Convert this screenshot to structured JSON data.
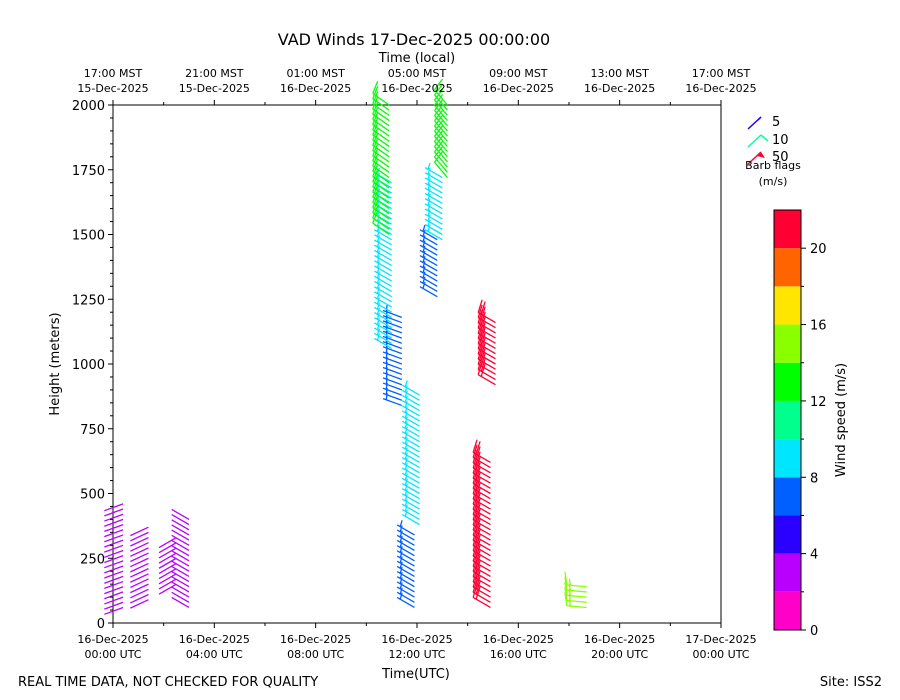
{
  "page": {
    "title": "VAD Winds 17-Dec-2025 00:00:00",
    "footer_left": "REAL TIME DATA, NOT CHECKED FOR QUALITY",
    "footer_right": "Site: ISS2"
  },
  "chart_data": {
    "type": "wind-barb",
    "title": "VAD Winds 17-Dec-2025 00:00:00",
    "xlabel": "Time(UTC)",
    "xlabel_top": "Time (local)",
    "ylabel": "Height (meters)",
    "xlim_hours": [
      0,
      24
    ],
    "ylim": [
      0,
      2000
    ],
    "x_ticks_hours": [
      0,
      4,
      8,
      12,
      16,
      20,
      24
    ],
    "x_tick_labels_utc": [
      [
        "16-Dec-2025",
        "00:00 UTC"
      ],
      [
        "16-Dec-2025",
        "04:00 UTC"
      ],
      [
        "16-Dec-2025",
        "08:00 UTC"
      ],
      [
        "16-Dec-2025",
        "12:00 UTC"
      ],
      [
        "16-Dec-2025",
        "16:00 UTC"
      ],
      [
        "16-Dec-2025",
        "20:00 UTC"
      ],
      [
        "17-Dec-2025",
        "00:00 UTC"
      ]
    ],
    "x_tick_labels_local": [
      [
        "17:00 MST",
        "15-Dec-2025"
      ],
      [
        "21:00 MST",
        "15-Dec-2025"
      ],
      [
        "01:00 MST",
        "16-Dec-2025"
      ],
      [
        "05:00 MST",
        "16-Dec-2025"
      ],
      [
        "09:00 MST",
        "16-Dec-2025"
      ],
      [
        "13:00 MST",
        "16-Dec-2025"
      ],
      [
        "17:00 MST",
        "16-Dec-2025"
      ]
    ],
    "y_ticks": [
      0,
      250,
      500,
      750,
      1000,
      1250,
      1500,
      1750,
      2000
    ],
    "barb_legend": {
      "title": "Barb flags",
      "units": "(m/s)",
      "entries": [
        "5",
        "10",
        "50"
      ],
      "entry_colors": [
        "#2a00ff",
        "#00ffa0",
        "#ff0033"
      ]
    },
    "colorbar": {
      "label": "Wind speed (m/s)",
      "min": 0,
      "max": 22,
      "ticks": [
        0,
        4,
        8,
        12,
        16,
        20
      ],
      "tick_labels": [
        "0",
        "4",
        "8",
        "12",
        "16",
        "20"
      ],
      "colors": [
        "#ff00c8",
        "#b900ff",
        "#2a00ff",
        "#005fff",
        "#00e6ff",
        "#00ff8c",
        "#00ff00",
        "#8aff00",
        "#ffe600",
        "#ff6400",
        "#ff0033"
      ]
    },
    "barb_groups": [
      {
        "name": "night-east-1",
        "hour": 0.4,
        "h_from": 60,
        "h_to": 460,
        "step": 20,
        "speed": 3.5,
        "dir": 250
      },
      {
        "name": "night-east-2",
        "hour": 1.4,
        "h_from": 90,
        "h_to": 380,
        "step": 20,
        "speed": 3.5,
        "dir": 245
      },
      {
        "name": "night-east-3",
        "hour": 2.5,
        "h_from": 150,
        "h_to": 340,
        "step": 20,
        "speed": 3.5,
        "dir": 240
      },
      {
        "name": "night-east-4",
        "hour": 3.0,
        "h_from": 60,
        "h_to": 400,
        "step": 20,
        "speed": 3.6,
        "dir": 300
      },
      {
        "name": "morning-low-blue",
        "hour": 11.9,
        "h_from": 60,
        "h_to": 340,
        "step": 20,
        "speed": 6.0,
        "dir": 300
      },
      {
        "name": "morning-low-cyan",
        "hour": 12.1,
        "h_from": 380,
        "h_to": 880,
        "step": 20,
        "speed": 8.2,
        "dir": 300
      },
      {
        "name": "morning-mid-blue",
        "hour": 11.4,
        "h_from": 840,
        "h_to": 1180,
        "step": 20,
        "speed": 6.5,
        "dir": 290
      },
      {
        "name": "morning-upper-cyan",
        "hour": 11.0,
        "h_from": 1060,
        "h_to": 1700,
        "step": 20,
        "speed": 8.5,
        "dir": 300
      },
      {
        "name": "morning-top-green",
        "hour": 10.9,
        "h_from": 1500,
        "h_to": 2000,
        "step": 20,
        "speed": 12.0,
        "dir": 305
      },
      {
        "name": "late-morning-blue",
        "hour": 12.8,
        "h_from": 1260,
        "h_to": 1480,
        "step": 20,
        "speed": 6.5,
        "dir": 300
      },
      {
        "name": "late-morning-cyan",
        "hour": 13.0,
        "h_from": 1480,
        "h_to": 1720,
        "step": 20,
        "speed": 8.5,
        "dir": 300
      },
      {
        "name": "late-morning-green",
        "hour": 13.2,
        "h_from": 1720,
        "h_to": 2000,
        "step": 20,
        "speed": 12.0,
        "dir": 320
      },
      {
        "name": "midday-low-red",
        "hour": 14.9,
        "h_from": 60,
        "h_to": 620,
        "step": 20,
        "speed": 21.0,
        "dir": 300
      },
      {
        "name": "midday-mid-red",
        "hour": 15.1,
        "h_from": 920,
        "h_to": 1160,
        "step": 20,
        "speed": 20.5,
        "dir": 300
      },
      {
        "name": "afternoon-green",
        "hour": 18.7,
        "h_from": 60,
        "h_to": 140,
        "step": 20,
        "speed": 15.0,
        "dir": 275
      }
    ]
  }
}
